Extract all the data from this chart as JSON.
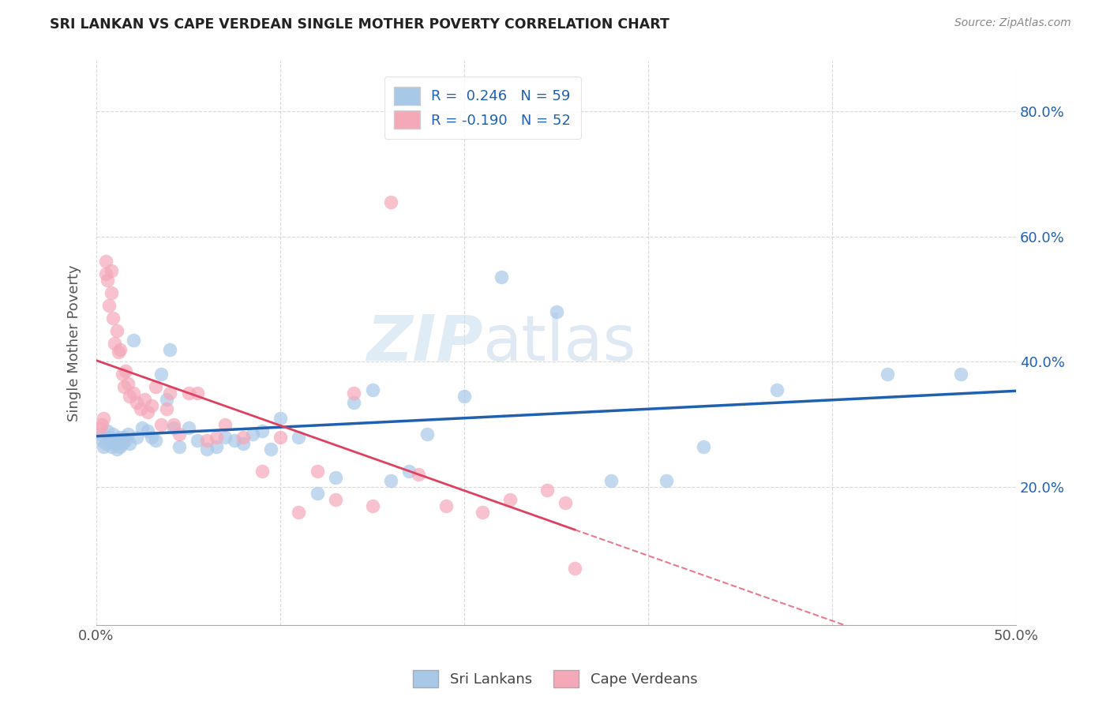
{
  "title": "SRI LANKAN VS CAPE VERDEAN SINGLE MOTHER POVERTY CORRELATION CHART",
  "source": "Source: ZipAtlas.com",
  "ylabel": "Single Mother Poverty",
  "yticks": [
    "20.0%",
    "40.0%",
    "60.0%",
    "80.0%"
  ],
  "ytick_values": [
    0.2,
    0.4,
    0.6,
    0.8
  ],
  "xmin": 0.0,
  "xmax": 0.5,
  "ymin": -0.02,
  "ymax": 0.88,
  "sri_lankans_color": "#a8c8e8",
  "cape_verdeans_color": "#f4a8b8",
  "sri_lankans_line_color": "#2060b0",
  "cape_verdeans_line_color": "#e04060",
  "watermark_text": "ZIPatlas",
  "R_sri": 0.246,
  "R_cape": -0.19,
  "N_sri": 59,
  "N_cape": 52,
  "sri_lankans_x": [
    0.002,
    0.003,
    0.004,
    0.005,
    0.006,
    0.007,
    0.007,
    0.008,
    0.009,
    0.01,
    0.01,
    0.011,
    0.012,
    0.013,
    0.013,
    0.014,
    0.015,
    0.016,
    0.017,
    0.018,
    0.02,
    0.022,
    0.025,
    0.028,
    0.03,
    0.032,
    0.035,
    0.038,
    0.04,
    0.042,
    0.045,
    0.05,
    0.055,
    0.06,
    0.065,
    0.07,
    0.075,
    0.08,
    0.085,
    0.09,
    0.095,
    0.1,
    0.11,
    0.12,
    0.13,
    0.14,
    0.15,
    0.16,
    0.17,
    0.18,
    0.2,
    0.22,
    0.25,
    0.28,
    0.31,
    0.33,
    0.37,
    0.43,
    0.47
  ],
  "sri_lankans_y": [
    0.285,
    0.275,
    0.265,
    0.27,
    0.29,
    0.28,
    0.275,
    0.265,
    0.285,
    0.275,
    0.27,
    0.26,
    0.275,
    0.28,
    0.265,
    0.27,
    0.28,
    0.275,
    0.285,
    0.27,
    0.435,
    0.28,
    0.295,
    0.29,
    0.28,
    0.275,
    0.38,
    0.34,
    0.42,
    0.295,
    0.265,
    0.295,
    0.275,
    0.26,
    0.265,
    0.28,
    0.275,
    0.27,
    0.285,
    0.29,
    0.26,
    0.31,
    0.28,
    0.19,
    0.215,
    0.335,
    0.355,
    0.21,
    0.225,
    0.285,
    0.345,
    0.535,
    0.48,
    0.21,
    0.21,
    0.265,
    0.355,
    0.38,
    0.38
  ],
  "cape_verdeans_x": [
    0.002,
    0.003,
    0.004,
    0.005,
    0.005,
    0.006,
    0.007,
    0.008,
    0.008,
    0.009,
    0.01,
    0.011,
    0.012,
    0.013,
    0.014,
    0.015,
    0.016,
    0.017,
    0.018,
    0.02,
    0.022,
    0.024,
    0.026,
    0.028,
    0.03,
    0.032,
    0.035,
    0.038,
    0.04,
    0.042,
    0.045,
    0.05,
    0.055,
    0.06,
    0.065,
    0.07,
    0.08,
    0.09,
    0.1,
    0.11,
    0.12,
    0.13,
    0.14,
    0.15,
    0.16,
    0.175,
    0.19,
    0.21,
    0.225,
    0.245,
    0.255,
    0.26
  ],
  "cape_verdeans_y": [
    0.295,
    0.3,
    0.31,
    0.54,
    0.56,
    0.53,
    0.49,
    0.51,
    0.545,
    0.47,
    0.43,
    0.45,
    0.415,
    0.42,
    0.38,
    0.36,
    0.385,
    0.365,
    0.345,
    0.35,
    0.335,
    0.325,
    0.34,
    0.32,
    0.33,
    0.36,
    0.3,
    0.325,
    0.35,
    0.3,
    0.285,
    0.35,
    0.35,
    0.275,
    0.28,
    0.3,
    0.28,
    0.225,
    0.28,
    0.16,
    0.225,
    0.18,
    0.35,
    0.17,
    0.655,
    0.22,
    0.17,
    0.16,
    0.18,
    0.195,
    0.175,
    0.07
  ]
}
